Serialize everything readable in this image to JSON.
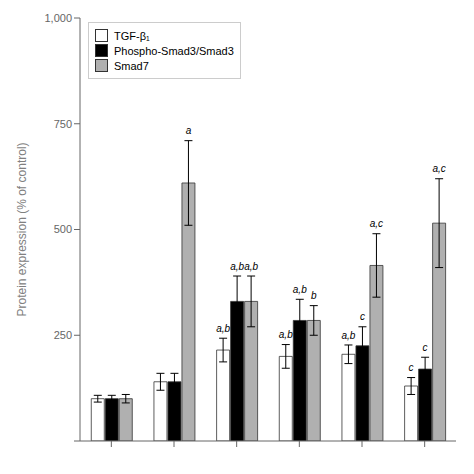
{
  "chart_data": {
    "type": "bar",
    "categories": [
      null,
      null,
      null,
      null,
      null,
      null
    ],
    "series": [
      {
        "name": "TGF-β₁",
        "color": "white",
        "values": [
          100,
          140,
          215,
          200,
          205,
          130
        ],
        "errors": [
          8,
          20,
          28,
          28,
          22,
          20
        ],
        "annotations": [
          null,
          null,
          "a,b",
          "a,b",
          "a,b",
          "c"
        ]
      },
      {
        "name": "Phospho-Smad3/Smad3",
        "color": "black",
        "values": [
          100,
          140,
          330,
          285,
          225,
          170
        ],
        "errors": [
          8,
          20,
          60,
          50,
          45,
          28
        ],
        "annotations": [
          null,
          null,
          "a,b",
          "a,b",
          "c",
          "c"
        ]
      },
      {
        "name": "Smad7",
        "color": "#b0b0b0",
        "values": [
          100,
          610,
          330,
          285,
          415,
          515
        ],
        "errors": [
          10,
          100,
          60,
          35,
          75,
          105
        ],
        "annotations": [
          null,
          "a",
          "a,b",
          "b",
          "a,c",
          "a,c"
        ]
      }
    ],
    "ylabel": "Protein expression (% of control)",
    "ylim": [
      0,
      1000
    ],
    "yticks": [
      {
        "value": 0,
        "label": ""
      },
      250,
      500,
      750,
      {
        "value": 1000,
        "label": "1,000"
      }
    ],
    "grid": false,
    "legend": "upper left"
  }
}
